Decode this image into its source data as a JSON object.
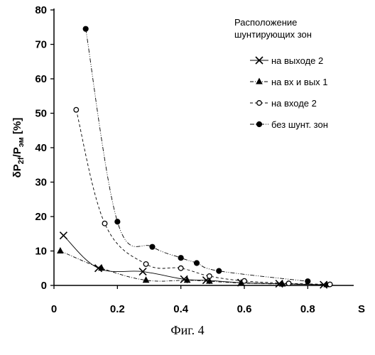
{
  "chart_data": {
    "type": "line",
    "title": "",
    "xlabel": "S",
    "ylabel": "δP",
    "ylabel_sub1": "2f",
    "ylabel_mid": "/P",
    "ylabel_sub2": "эм",
    "ylabel_tail": " [%]",
    "xlim": [
      0,
      0.9
    ],
    "ylim": [
      0,
      80
    ],
    "x_ticks": [
      0,
      0.2,
      0.4,
      0.6,
      0.8
    ],
    "y_ticks": [
      0,
      10,
      20,
      30,
      40,
      50,
      60,
      70,
      80
    ],
    "legend_title": [
      "Расположение",
      "шунтирующих зон"
    ],
    "legend_position": "top-right",
    "series": [
      {
        "name": "на выходе 2",
        "marker": "x",
        "x": [
          0.03,
          0.14,
          0.28,
          0.41,
          0.48,
          0.59,
          0.71,
          0.85
        ],
        "y": [
          14.5,
          5,
          4,
          1.8,
          1.5,
          0.8,
          0.5,
          0.2
        ]
      },
      {
        "name": "на вх и вых 1",
        "marker": "triangle",
        "x": [
          0.02,
          0.15,
          0.29,
          0.42,
          0.49,
          0.59,
          0.72,
          0.86
        ],
        "y": [
          10,
          5,
          1.5,
          1.5,
          1.2,
          0.7,
          0.4,
          0.2
        ]
      },
      {
        "name": "на входе  2",
        "marker": "circle-open",
        "x": [
          0.07,
          0.16,
          0.29,
          0.4,
          0.49,
          0.6,
          0.74,
          0.87
        ],
        "y": [
          51,
          18,
          6.2,
          5,
          2.7,
          1.3,
          0.6,
          0.3
        ]
      },
      {
        "name": "без шунт. зон",
        "marker": "circle-filled",
        "x": [
          0.1,
          0.2,
          0.31,
          0.4,
          0.45,
          0.52,
          0.8
        ],
        "y": [
          74.5,
          18.5,
          11.2,
          8,
          6.5,
          4.2,
          1.2
        ]
      }
    ]
  },
  "caption": "Фиг. 4"
}
